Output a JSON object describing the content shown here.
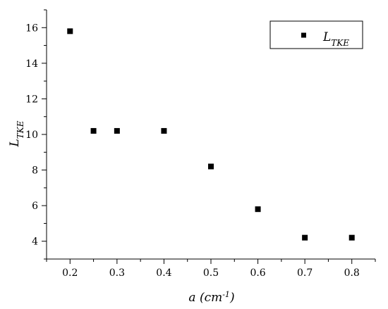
{
  "chart_data": {
    "type": "scatter",
    "title": "",
    "xlabel": "a (cm-1)",
    "ylabel": "LTKE",
    "xlabel_parts": {
      "main": "a (cm",
      "sup": "-1",
      "close": ")"
    },
    "ylabel_parts": {
      "main": "L",
      "sub": "TKE"
    },
    "xlim": [
      0.15,
      0.85
    ],
    "ylim": [
      3,
      17
    ],
    "x_ticks": [
      0.2,
      0.3,
      0.4,
      0.5,
      0.6,
      0.7,
      0.8
    ],
    "x_tick_labels": [
      "0.2",
      "0.3",
      "0.4",
      "0.5",
      "0.6",
      "0.7",
      "0.8"
    ],
    "y_ticks": [
      4,
      6,
      8,
      10,
      12,
      14,
      16
    ],
    "y_tick_labels": [
      "4",
      "6",
      "8",
      "10",
      "12",
      "14",
      "16"
    ],
    "grid": false,
    "legend": "top-right",
    "series": [
      {
        "name": "LTKE",
        "name_parts": {
          "main": "L",
          "sub": "TKE"
        },
        "marker": "square",
        "color": "#000000",
        "x": [
          0.2,
          0.25,
          0.3,
          0.4,
          0.5,
          0.6,
          0.7,
          0.8
        ],
        "y": [
          15.8,
          10.2,
          10.2,
          10.2,
          8.2,
          5.8,
          4.2,
          4.2
        ]
      }
    ]
  }
}
